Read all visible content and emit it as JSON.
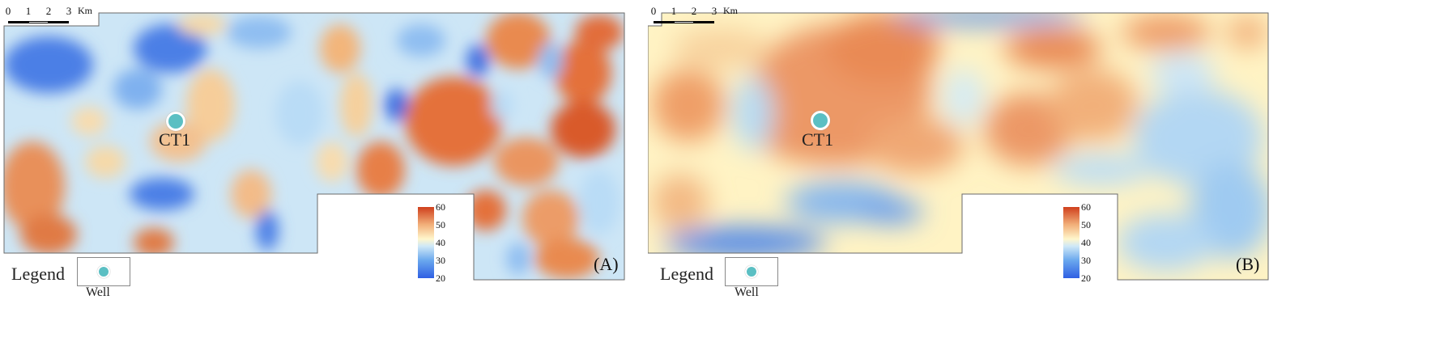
{
  "colors": {
    "low": "#3a66e0",
    "mid_low": "#a9d3f2",
    "mid": "#fff5c9",
    "mid_high": "#f3b57a",
    "high": "#d8532a",
    "well": "#5bbfc3",
    "frame": "#6a6a6a"
  },
  "scale_bar": {
    "ticks": [
      "0",
      "1",
      "2",
      "3"
    ],
    "unit": "Km"
  },
  "colorbar": {
    "ticks": [
      "60",
      "50",
      "40",
      "30",
      "20"
    ],
    "range": [
      20,
      60
    ]
  },
  "legend": {
    "title": "Legend",
    "well_label": "Well"
  },
  "panels": [
    {
      "tag": "(A)",
      "well": {
        "name": "CT1"
      }
    },
    {
      "tag": "(B)",
      "well": {
        "name": "CT1"
      }
    }
  ]
}
